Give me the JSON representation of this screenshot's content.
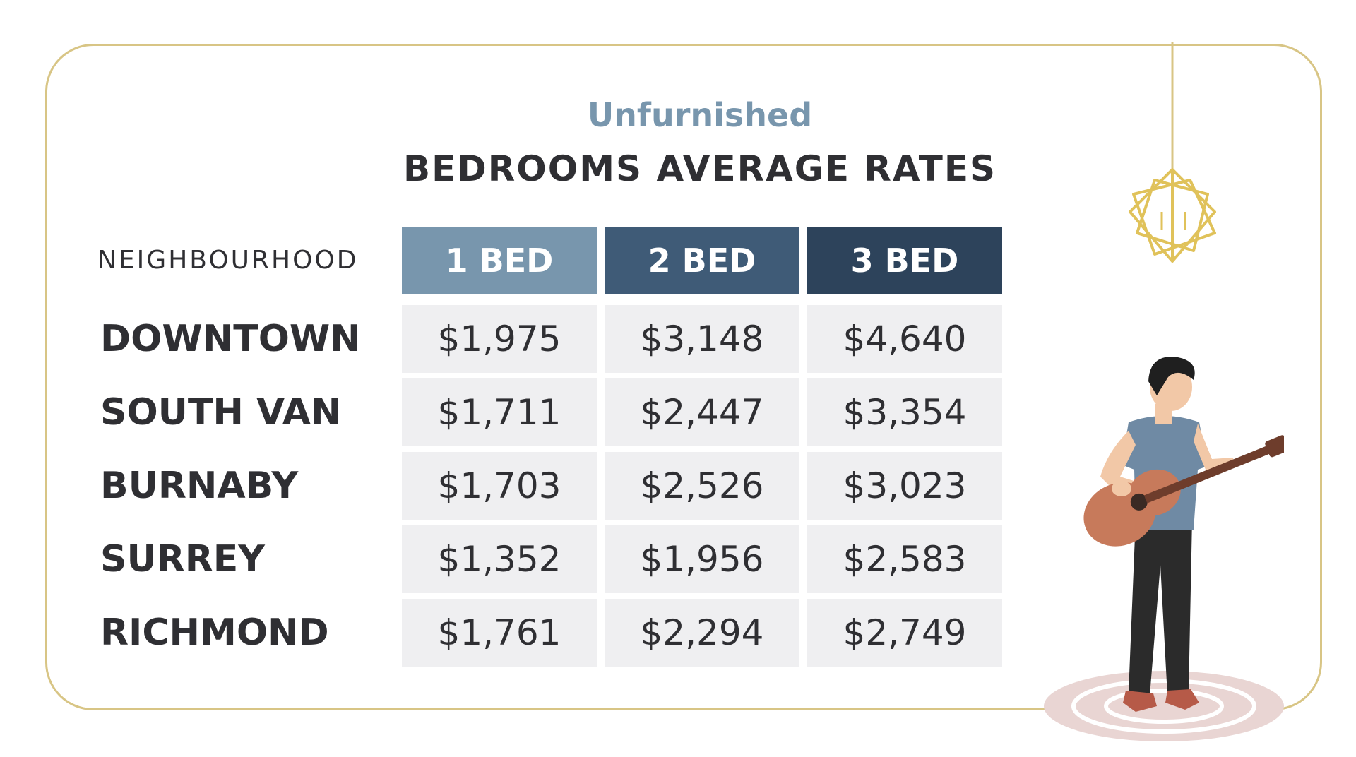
{
  "header": {
    "subtitle": "Unfurnished",
    "title": "BEDROOMS AVERAGE RATES"
  },
  "colors": {
    "frame": "#d8c585",
    "subtitle": "#7896ad",
    "text": "#2f2f33",
    "cell_bg": "#efeff1",
    "col1": "#7896ad",
    "col2": "#3f5b77",
    "col3": "#2d435b"
  },
  "chart_data": {
    "type": "table",
    "title": "BEDROOMS AVERAGE RATES",
    "subtitle": "Unfurnished",
    "row_header": "NEIGHBOURHOOD",
    "columns": [
      "1 BED",
      "2 BED",
      "3 BED"
    ],
    "rows": [
      {
        "label": "DOWNTOWN",
        "values": [
          "$1,975",
          "$3,148",
          "$4,640"
        ]
      },
      {
        "label": "SOUTH VAN",
        "values": [
          "$1,711",
          "$2,447",
          "$3,354"
        ]
      },
      {
        "label": "BURNABY",
        "values": [
          "$1,703",
          "$2,526",
          "$3,023"
        ]
      },
      {
        "label": "SURREY",
        "values": [
          "$1,352",
          "$1,956",
          "$2,583"
        ]
      },
      {
        "label": "RICHMOND",
        "values": [
          "$1,761",
          "$2,294",
          "$2,749"
        ]
      }
    ]
  },
  "illustrations": {
    "lamp_icon": "geometric-pendant-lamp-icon",
    "person_icon": "guitar-player-illustration-icon"
  }
}
